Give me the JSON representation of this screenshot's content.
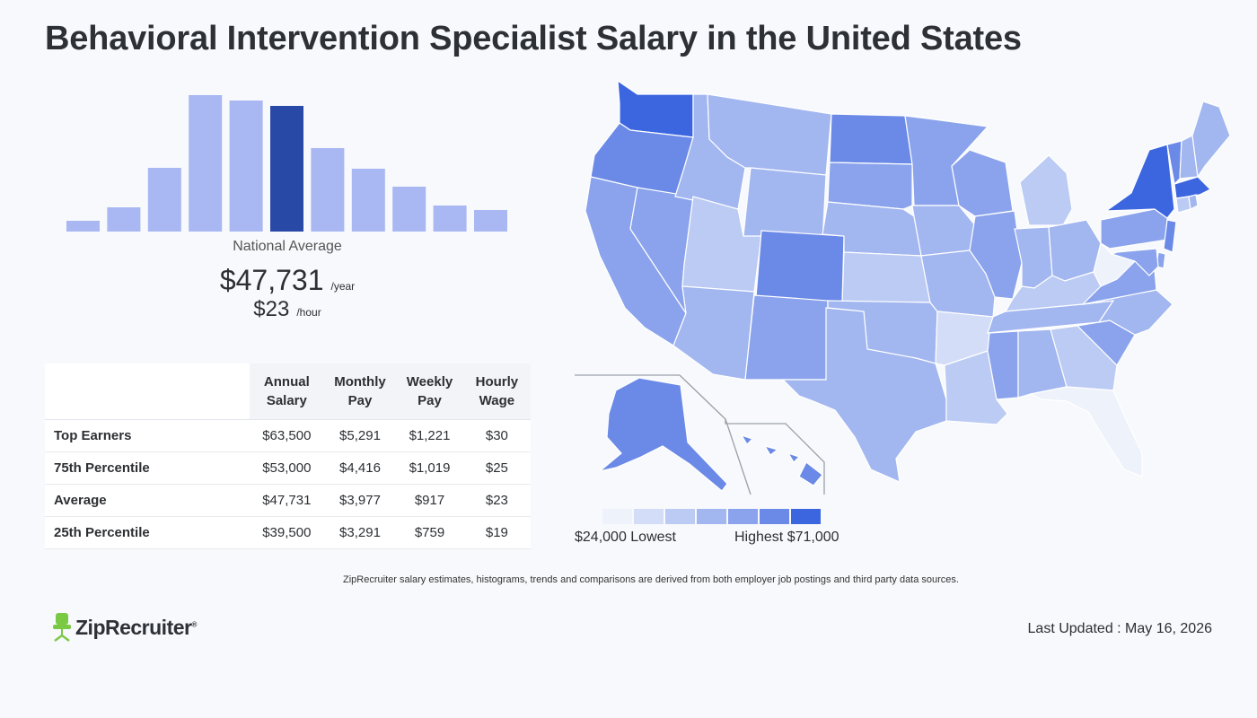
{
  "page": {
    "title": "Behavioral Intervention Specialist Salary in the United States",
    "national_average_label": "National Average",
    "annual_value": "$47,731",
    "annual_unit": "/year",
    "hourly_value": "$23",
    "hourly_unit": "/hour",
    "footnote": "ZipRecruiter salary estimates, histograms, trends and comparisons are derived from both employer job postings and third party data sources.",
    "brand": "ZipRecruiter",
    "last_updated": "Last Updated : May 16, 2026"
  },
  "colors": {
    "bar": "#a9b8f2",
    "bar_highlight": "#2949a6",
    "accent": "#3b66e0"
  },
  "chart_data": [
    {
      "type": "bar",
      "values": [
        0.08,
        0.18,
        0.47,
        1.0,
        0.96,
        0.92,
        0.61,
        0.46,
        0.33,
        0.19,
        0.16
      ],
      "highlight_index": 5
    },
    {
      "type": "heatmap",
      "legend": {
        "low_label": "$24,000 Lowest",
        "high_label": "Highest $71,000",
        "bins": [
          "#eef2fb",
          "#d3ddf7",
          "#bccbf4",
          "#a2b6f0",
          "#8aa3ec",
          "#6b89e6",
          "#3b66e0"
        ]
      },
      "states": [
        {
          "name": "WA",
          "bin": 6
        },
        {
          "name": "OR",
          "bin": 5
        },
        {
          "name": "CA",
          "bin": 4
        },
        {
          "name": "NV",
          "bin": 4
        },
        {
          "name": "ID",
          "bin": 3
        },
        {
          "name": "MT",
          "bin": 3
        },
        {
          "name": "WY",
          "bin": 3
        },
        {
          "name": "UT",
          "bin": 2
        },
        {
          "name": "AZ",
          "bin": 3
        },
        {
          "name": "CO",
          "bin": 5
        },
        {
          "name": "NM",
          "bin": 4
        },
        {
          "name": "ND",
          "bin": 5
        },
        {
          "name": "SD",
          "bin": 4
        },
        {
          "name": "NE",
          "bin": 3
        },
        {
          "name": "KS",
          "bin": 2
        },
        {
          "name": "OK",
          "bin": 3
        },
        {
          "name": "TX",
          "bin": 3
        },
        {
          "name": "MN",
          "bin": 4
        },
        {
          "name": "IA",
          "bin": 3
        },
        {
          "name": "MO",
          "bin": 3
        },
        {
          "name": "AR",
          "bin": 1
        },
        {
          "name": "LA",
          "bin": 2
        },
        {
          "name": "WI",
          "bin": 4
        },
        {
          "name": "IL",
          "bin": 4
        },
        {
          "name": "MI",
          "bin": 2
        },
        {
          "name": "IN",
          "bin": 3
        },
        {
          "name": "OH",
          "bin": 3
        },
        {
          "name": "KY",
          "bin": 2
        },
        {
          "name": "TN",
          "bin": 3
        },
        {
          "name": "MS",
          "bin": 4
        },
        {
          "name": "AL",
          "bin": 3
        },
        {
          "name": "GA",
          "bin": 2
        },
        {
          "name": "FL",
          "bin": 0
        },
        {
          "name": "SC",
          "bin": 4
        },
        {
          "name": "NC",
          "bin": 3
        },
        {
          "name": "VA",
          "bin": 4
        },
        {
          "name": "WV",
          "bin": 0
        },
        {
          "name": "PA",
          "bin": 4
        },
        {
          "name": "NY",
          "bin": 6
        },
        {
          "name": "VT",
          "bin": 5
        },
        {
          "name": "NH",
          "bin": 3
        },
        {
          "name": "ME",
          "bin": 3
        },
        {
          "name": "MA",
          "bin": 6
        },
        {
          "name": "CT",
          "bin": 2
        },
        {
          "name": "RI",
          "bin": 3
        },
        {
          "name": "NJ",
          "bin": 5
        },
        {
          "name": "DE",
          "bin": 4
        },
        {
          "name": "MD",
          "bin": 4
        },
        {
          "name": "AK",
          "bin": 5
        },
        {
          "name": "HI",
          "bin": 5
        }
      ]
    }
  ],
  "table": {
    "headers": [
      "Annual Salary",
      "Monthly Pay",
      "Weekly Pay",
      "Hourly Wage"
    ],
    "rows": [
      {
        "label": "Top Earners",
        "annual": "$63,500",
        "monthly": "$5,291",
        "weekly": "$1,221",
        "hourly": "$30"
      },
      {
        "label": "75th Percentile",
        "annual": "$53,000",
        "monthly": "$4,416",
        "weekly": "$1,019",
        "hourly": "$25"
      },
      {
        "label": "Average",
        "annual": "$47,731",
        "monthly": "$3,977",
        "weekly": "$917",
        "hourly": "$23"
      },
      {
        "label": "25th Percentile",
        "annual": "$39,500",
        "monthly": "$3,291",
        "weekly": "$759",
        "hourly": "$19"
      }
    ]
  }
}
